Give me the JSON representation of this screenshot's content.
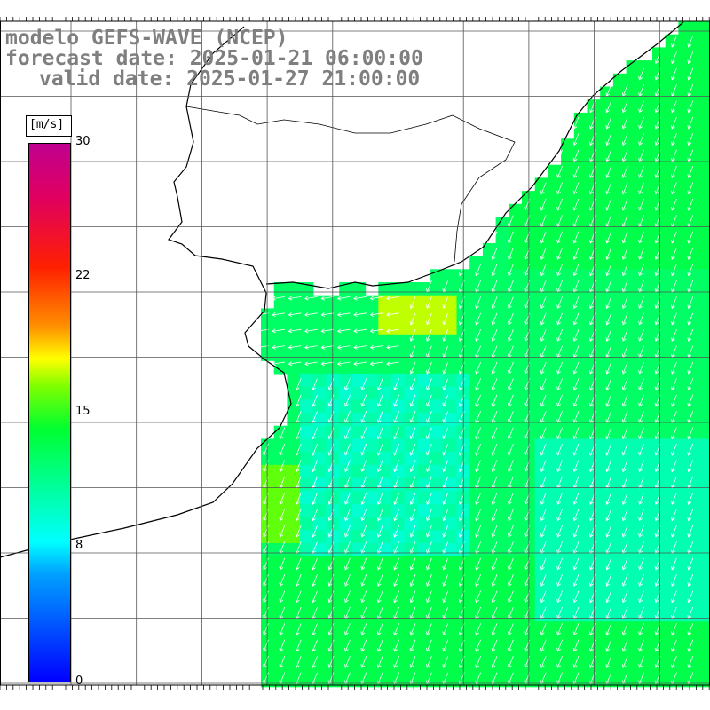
{
  "title": {
    "line1": "modelo GEFS-WAVE (NCEP)",
    "line2": "forecast date: 2025-01-21 06:00:00",
    "line3": "valid date: 2025-01-27 21:00:00"
  },
  "colorbar": {
    "unit": "[m/s]",
    "ticks": [
      {
        "label": "30",
        "value": 30
      },
      {
        "label": "22",
        "value": 22
      },
      {
        "label": "15",
        "value": 15
      },
      {
        "label": "8",
        "value": 8
      },
      {
        "label": "0",
        "value": 0
      }
    ],
    "min": 0,
    "max": 30
  },
  "map": {
    "lat_labels": [
      "",
      "",
      "",
      "",
      "",
      "",
      "",
      "",
      "",
      "",
      "",
      ""
    ],
    "lon_labels": [
      "",
      "",
      "",
      "",
      "",
      "",
      "",
      "",
      ""
    ]
  },
  "colors": {
    "land": "#ffffff",
    "grid": "#555555",
    "coast": "#000000",
    "arrows": "#ffffff",
    "title": "#7f7f7f"
  }
}
